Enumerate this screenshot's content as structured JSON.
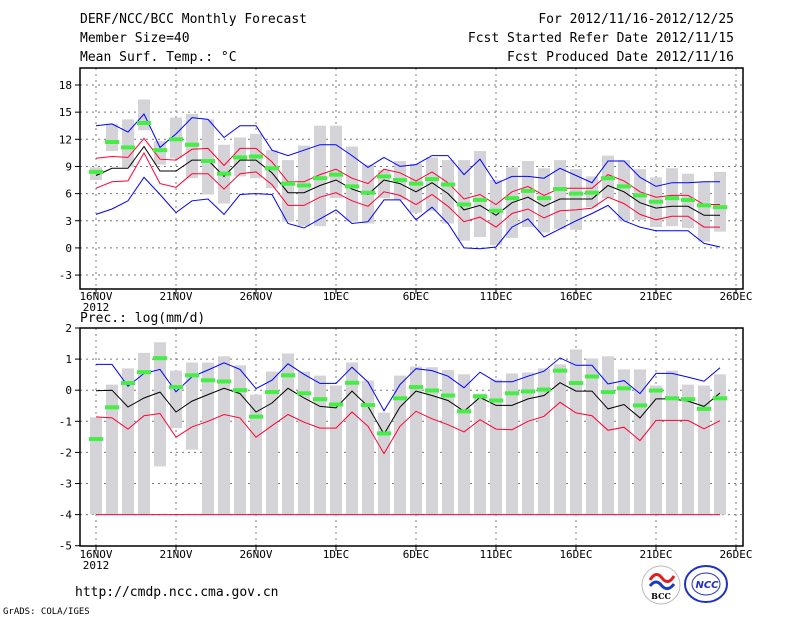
{
  "header": {
    "title": "DERF/NCC/BCC Monthly Forecast",
    "member_size": "Member Size=40",
    "variable_top": "Mean Surf. Temp.: °C",
    "period": "For 2012/11/16-2012/12/25",
    "started": "Fcst Started Refer Date 2012/11/15",
    "produced": "Fcst Produced Date 2012/11/16"
  },
  "footer": {
    "url": "http://cmdp.ncc.cma.gov.cn",
    "credit": "GrADS: COLA/IGES",
    "logo_bcc": "BCC",
    "logo_ncc": "NCC"
  },
  "colors": {
    "max_min": "#0000ff",
    "spread": "#ff0033",
    "mean": "#000000",
    "observed": "#44ee44",
    "range_bar": "#d4d4d8"
  },
  "chart_data": [
    {
      "type": "line",
      "title": "Mean Surf. Temp.: °C",
      "xlabel": "",
      "ylabel": "",
      "ylim": [
        -5,
        20
      ],
      "yticks": [
        "18",
        "15",
        "12",
        "9",
        "6",
        "3",
        "0",
        "-3"
      ],
      "ytick_values": [
        18,
        15,
        12,
        9,
        6,
        3,
        0,
        -3
      ],
      "xticks": [
        "16NOV",
        "21NOV",
        "26NOV",
        "1DEC",
        "6DEC",
        "11DEC",
        "16DEC",
        "21DEC",
        "26DEC"
      ],
      "xtick_year": "2012",
      "grid": true,
      "days": 40,
      "series": [
        {
          "name": "max",
          "color": "#0000ff",
          "values": [
            13.5,
            13.7,
            12.8,
            14.8,
            11.1,
            12.6,
            14.4,
            14.2,
            12.2,
            13.5,
            13.5,
            10.8,
            10.2,
            10.8,
            11.4,
            11.4,
            10.2,
            8.9,
            10.0,
            9.0,
            9.2,
            10.2,
            10.2,
            8.1,
            9.8,
            7.1,
            7.9,
            7.9,
            7.7,
            8.8,
            8.0,
            7.2,
            9.6,
            9.6,
            7.8,
            6.8,
            7.2,
            7.2,
            7.3,
            7.3
          ]
        },
        {
          "name": "upper",
          "color": "#ff0033",
          "values": [
            9.9,
            10.1,
            10.0,
            12.1,
            9.8,
            9.7,
            10.9,
            11.0,
            9.1,
            11.0,
            11.0,
            9.5,
            7.3,
            7.3,
            8.1,
            8.7,
            7.7,
            7.1,
            8.7,
            8.3,
            7.4,
            8.4,
            7.2,
            5.4,
            5.9,
            4.8,
            6.2,
            6.8,
            5.8,
            6.6,
            6.6,
            6.6,
            8.1,
            7.4,
            6.2,
            5.6,
            5.8,
            5.8,
            4.8,
            4.8
          ]
        },
        {
          "name": "mean",
          "color": "#000000",
          "values": [
            8.0,
            8.8,
            8.8,
            11.2,
            8.5,
            8.5,
            9.7,
            9.7,
            7.9,
            9.7,
            9.7,
            8.3,
            6.1,
            6.1,
            6.9,
            7.5,
            6.5,
            5.9,
            7.5,
            7.1,
            6.2,
            7.2,
            6.0,
            4.2,
            4.7,
            3.6,
            5.0,
            5.6,
            4.6,
            5.4,
            5.4,
            5.4,
            6.9,
            6.2,
            5.0,
            4.4,
            4.6,
            4.6,
            3.6,
            3.6
          ]
        },
        {
          "name": "lower",
          "color": "#ff0033",
          "values": [
            6.6,
            7.3,
            7.4,
            10.5,
            7.1,
            6.7,
            8.2,
            8.2,
            6.5,
            8.2,
            8.4,
            7.0,
            4.7,
            4.7,
            5.6,
            6.1,
            5.2,
            4.6,
            6.2,
            5.8,
            4.8,
            5.9,
            4.6,
            2.9,
            3.4,
            2.3,
            3.8,
            4.3,
            3.3,
            4.1,
            4.2,
            4.4,
            5.6,
            4.9,
            3.7,
            3.1,
            3.5,
            3.5,
            2.3,
            2.3
          ]
        },
        {
          "name": "min",
          "color": "#0000ff",
          "values": [
            3.7,
            4.3,
            5.2,
            7.8,
            5.9,
            3.9,
            5.2,
            5.4,
            3.7,
            5.9,
            6.0,
            5.9,
            2.7,
            2.2,
            3.2,
            4.2,
            2.7,
            2.9,
            5.3,
            5.3,
            3.1,
            4.5,
            2.7,
            0.0,
            -0.1,
            0.1,
            2.3,
            3.2,
            1.2,
            2.1,
            3.0,
            3.8,
            4.7,
            3.0,
            2.3,
            1.9,
            1.9,
            1.9,
            0.5,
            0.1
          ]
        },
        {
          "name": "observed",
          "color": "#44ee44",
          "values": [
            8.4,
            11.7,
            11.1,
            13.8,
            10.8,
            12.0,
            11.4,
            9.6,
            8.2,
            10.0,
            10.1,
            8.8,
            7.1,
            6.9,
            7.7,
            8.1,
            6.8,
            6.1,
            7.9,
            7.5,
            7.1,
            7.6,
            7.0,
            4.8,
            5.3,
            4.1,
            5.5,
            6.3,
            5.5,
            6.5,
            6.0,
            6.1,
            7.7,
            6.8,
            5.8,
            5.1,
            5.5,
            5.3,
            4.7,
            4.5
          ]
        }
      ],
      "range_bars": {
        "high": [
          8.9,
          13.7,
          14.2,
          16.4,
          11.8,
          14.4,
          14.8,
          14.2,
          11.4,
          12.2,
          12.6,
          10.8,
          9.7,
          11.3,
          13.5,
          13.5,
          11.2,
          9.2,
          8.6,
          9.6,
          9.3,
          10.0,
          9.7,
          9.7,
          10.7,
          7.5,
          8.9,
          9.6,
          8.8,
          9.7,
          8.7,
          7.9,
          10.2,
          9.7,
          8.7,
          7.8,
          8.8,
          8.2,
          7.3,
          8.4
        ],
        "low": [
          7.5,
          10.7,
          8.9,
          13.0,
          9.2,
          9.9,
          7.7,
          5.9,
          4.9,
          7.9,
          7.7,
          6.6,
          2.9,
          2.4,
          2.4,
          5.5,
          2.9,
          2.7,
          5.5,
          5.3,
          3.9,
          4.1,
          2.7,
          0.8,
          1.2,
          0.3,
          1.1,
          2.3,
          1.7,
          2.1,
          2.0,
          4.5,
          5.5,
          3.0,
          3.1,
          2.3,
          2.4,
          2.2,
          0.7,
          1.8
        ]
      }
    },
    {
      "type": "line",
      "title": "Prec.: log(mm/d)",
      "xlabel": "",
      "ylabel": "",
      "ylim": [
        -5,
        2
      ],
      "yticks": [
        "2",
        "1",
        "0",
        "-1",
        "-2",
        "-3",
        "-4",
        "-5"
      ],
      "ytick_values": [
        2,
        1,
        0,
        -1,
        -2,
        -3,
        -4,
        -5
      ],
      "xticks": [
        "16NOV",
        "21NOV",
        "26NOV",
        "1DEC",
        "6DEC",
        "11DEC",
        "16DEC",
        "21DEC",
        "26DEC"
      ],
      "xtick_year": "2012",
      "grid": true,
      "days": 40,
      "floor": -4,
      "series": [
        {
          "name": "max",
          "color": "#0000ff",
          "values": [
            0.83,
            0.83,
            0.13,
            0.54,
            0.67,
            -0.05,
            0.43,
            0.65,
            0.88,
            0.67,
            0.05,
            0.32,
            0.85,
            0.51,
            0.22,
            0.22,
            0.74,
            0.26,
            -0.66,
            0.18,
            0.69,
            0.63,
            0.45,
            0.08,
            0.58,
            0.27,
            0.27,
            0.45,
            0.61,
            1.04,
            0.8,
            0.8,
            0.2,
            0.31,
            -0.11,
            0.54,
            0.54,
            0.42,
            0.29,
            0.72
          ]
        },
        {
          "name": "mean",
          "color": "#000000",
          "values": [
            -0.02,
            0.0,
            -0.54,
            -0.25,
            -0.06,
            -0.7,
            -0.35,
            -0.14,
            0.06,
            -0.11,
            -0.7,
            -0.41,
            0.06,
            -0.25,
            -0.52,
            -0.57,
            -0.03,
            -0.52,
            -1.41,
            -0.54,
            -0.03,
            -0.17,
            -0.33,
            -0.68,
            -0.23,
            -0.49,
            -0.49,
            -0.28,
            -0.17,
            0.24,
            -0.03,
            -0.03,
            -0.6,
            -0.46,
            -0.89,
            -0.28,
            -0.28,
            -0.35,
            -0.52,
            -0.09
          ]
        },
        {
          "name": "lower",
          "color": "#ff0033",
          "values": [
            -0.86,
            -0.89,
            -1.25,
            -0.82,
            -0.75,
            -1.51,
            -1.18,
            -1.0,
            -0.78,
            -0.89,
            -1.51,
            -1.14,
            -0.78,
            -1.03,
            -1.22,
            -1.22,
            -0.7,
            -1.16,
            -2.04,
            -1.16,
            -0.68,
            -0.92,
            -1.11,
            -1.34,
            -0.95,
            -1.25,
            -1.27,
            -1.0,
            -0.84,
            -0.39,
            -0.73,
            -0.82,
            -1.29,
            -1.19,
            -1.62,
            -0.97,
            -0.97,
            -0.97,
            -1.24,
            -0.98
          ]
        },
        {
          "name": "observed",
          "color": "#44ee44",
          "values": [
            -1.57,
            -0.55,
            0.23,
            0.58,
            1.03,
            0.1,
            0.48,
            0.32,
            0.28,
            0.0,
            -0.85,
            -0.06,
            0.48,
            -0.1,
            -0.29,
            -0.46,
            0.24,
            -0.48,
            -1.39,
            -0.26,
            0.1,
            -0.01,
            -0.17,
            -0.68,
            -0.2,
            -0.33,
            -0.1,
            -0.04,
            0.02,
            0.63,
            0.23,
            0.44,
            -0.06,
            0.06,
            -0.49,
            -0.01,
            -0.26,
            -0.29,
            -0.6,
            -0.26
          ]
        }
      ],
      "range_bars": {
        "high": [
          -0.87,
          0.18,
          0.7,
          1.2,
          1.54,
          0.63,
          0.89,
          0.89,
          1.09,
          0.8,
          -0.14,
          0.6,
          1.18,
          0.6,
          0.47,
          0.15,
          0.89,
          0.31,
          -0.72,
          0.47,
          0.76,
          0.74,
          0.65,
          0.51,
          -0.11,
          0.34,
          0.54,
          0.57,
          0.7,
          0.83,
          1.31,
          1.02,
          1.09,
          0.67,
          0.67,
          0.15,
          0.63,
          0.18,
          0.15,
          0.51
        ],
        "low": [
          -4,
          -4,
          -4,
          -4,
          -2.45,
          -1.22,
          -1.91,
          -4,
          -4,
          -4,
          -4,
          -4,
          -4,
          -4,
          -4,
          -4,
          -4,
          -4,
          -4,
          -4,
          -4,
          -4,
          -4,
          -4,
          -4,
          -4,
          -4,
          -4,
          -4,
          -4,
          -4,
          -4,
          -4,
          -4,
          -4,
          -4,
          -4,
          -4,
          -4,
          -4
        ]
      }
    }
  ]
}
